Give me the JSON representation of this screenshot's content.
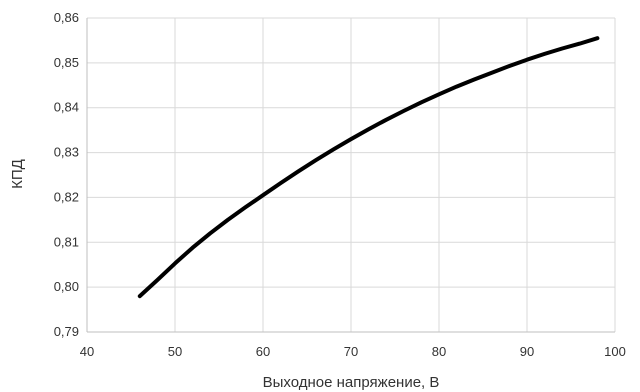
{
  "chart_data": {
    "type": "line",
    "title": "",
    "xlabel": "Выходное напряжение, В",
    "ylabel": "КПД",
    "xlim": [
      40,
      100
    ],
    "ylim": [
      0.79,
      0.86
    ],
    "x_ticks": [
      40,
      50,
      60,
      70,
      80,
      90,
      100
    ],
    "x_tick_labels": [
      "40",
      "50",
      "60",
      "70",
      "80",
      "90",
      "100"
    ],
    "y_ticks": [
      0.79,
      0.8,
      0.81,
      0.82,
      0.83,
      0.84,
      0.85,
      0.86
    ],
    "y_tick_labels": [
      "0,79",
      "0,80",
      "0,81",
      "0,82",
      "0,83",
      "0,84",
      "0,85",
      "0,86"
    ],
    "grid": true,
    "legend": "none",
    "series": [
      {
        "color": "#000000",
        "x": [
          46,
          48,
          50,
          52,
          54,
          56,
          58,
          60,
          62,
          64,
          66,
          68,
          70,
          72,
          74,
          76,
          78,
          80,
          82,
          84,
          86,
          88,
          90,
          92,
          94,
          96,
          98
        ],
        "y": [
          0.798,
          0.8016,
          0.8053,
          0.8088,
          0.812,
          0.815,
          0.8178,
          0.8205,
          0.8232,
          0.8258,
          0.8283,
          0.8307,
          0.833,
          0.8352,
          0.8373,
          0.8393,
          0.8412,
          0.843,
          0.8447,
          0.8463,
          0.8478,
          0.8493,
          0.8507,
          0.852,
          0.8532,
          0.8543,
          0.8555
        ]
      }
    ]
  }
}
